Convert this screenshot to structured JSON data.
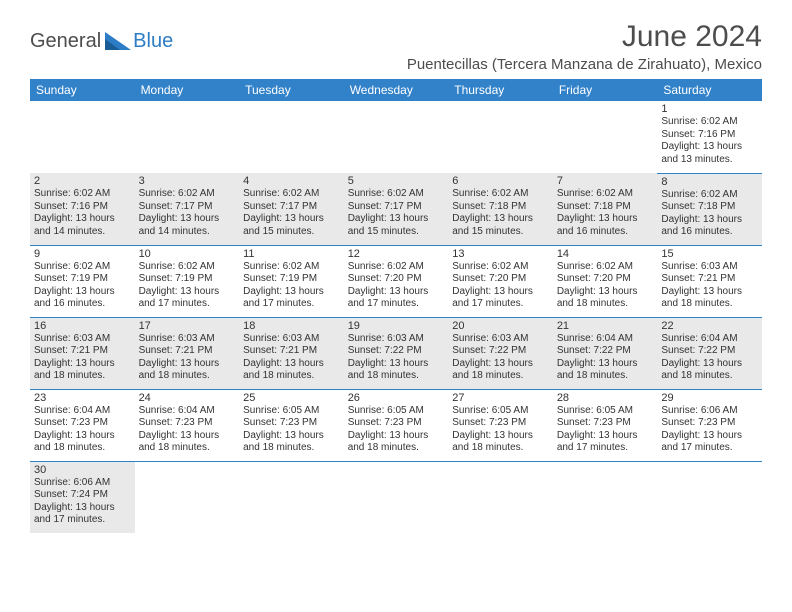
{
  "branding": {
    "logo_part1": "General",
    "logo_part2": "Blue",
    "logo_color_dark": "#4d4d4d",
    "logo_color_blue": "#2d7dc6"
  },
  "header": {
    "month_title": "June 2024",
    "location": "Puentecillas (Tercera Manzana de Zirahuato), Mexico"
  },
  "calendar": {
    "type": "table",
    "header_bg": "#3282c9",
    "header_text_color": "#ffffff",
    "row_separator_color": "#3282c9",
    "shaded_bg": "#e9e9e9",
    "day_headers": [
      "Sunday",
      "Monday",
      "Tuesday",
      "Wednesday",
      "Thursday",
      "Friday",
      "Saturday"
    ],
    "weeks": [
      [
        {
          "day": "",
          "sunrise": "",
          "sunset": "",
          "daylight": "",
          "shaded": false,
          "empty": true
        },
        {
          "day": "",
          "sunrise": "",
          "sunset": "",
          "daylight": "",
          "shaded": false,
          "empty": true
        },
        {
          "day": "",
          "sunrise": "",
          "sunset": "",
          "daylight": "",
          "shaded": false,
          "empty": true
        },
        {
          "day": "",
          "sunrise": "",
          "sunset": "",
          "daylight": "",
          "shaded": false,
          "empty": true
        },
        {
          "day": "",
          "sunrise": "",
          "sunset": "",
          "daylight": "",
          "shaded": false,
          "empty": true
        },
        {
          "day": "",
          "sunrise": "",
          "sunset": "",
          "daylight": "",
          "shaded": false,
          "empty": true
        },
        {
          "day": "1",
          "sunrise": "Sunrise: 6:02 AM",
          "sunset": "Sunset: 7:16 PM",
          "daylight": "Daylight: 13 hours and 13 minutes.",
          "shaded": false
        }
      ],
      [
        {
          "day": "2",
          "sunrise": "Sunrise: 6:02 AM",
          "sunset": "Sunset: 7:16 PM",
          "daylight": "Daylight: 13 hours and 14 minutes.",
          "shaded": true
        },
        {
          "day": "3",
          "sunrise": "Sunrise: 6:02 AM",
          "sunset": "Sunset: 7:17 PM",
          "daylight": "Daylight: 13 hours and 14 minutes.",
          "shaded": true
        },
        {
          "day": "4",
          "sunrise": "Sunrise: 6:02 AM",
          "sunset": "Sunset: 7:17 PM",
          "daylight": "Daylight: 13 hours and 15 minutes.",
          "shaded": true
        },
        {
          "day": "5",
          "sunrise": "Sunrise: 6:02 AM",
          "sunset": "Sunset: 7:17 PM",
          "daylight": "Daylight: 13 hours and 15 minutes.",
          "shaded": true
        },
        {
          "day": "6",
          "sunrise": "Sunrise: 6:02 AM",
          "sunset": "Sunset: 7:18 PM",
          "daylight": "Daylight: 13 hours and 15 minutes.",
          "shaded": true
        },
        {
          "day": "7",
          "sunrise": "Sunrise: 6:02 AM",
          "sunset": "Sunset: 7:18 PM",
          "daylight": "Daylight: 13 hours and 16 minutes.",
          "shaded": true
        },
        {
          "day": "8",
          "sunrise": "Sunrise: 6:02 AM",
          "sunset": "Sunset: 7:18 PM",
          "daylight": "Daylight: 13 hours and 16 minutes.",
          "shaded": true
        }
      ],
      [
        {
          "day": "9",
          "sunrise": "Sunrise: 6:02 AM",
          "sunset": "Sunset: 7:19 PM",
          "daylight": "Daylight: 13 hours and 16 minutes.",
          "shaded": false
        },
        {
          "day": "10",
          "sunrise": "Sunrise: 6:02 AM",
          "sunset": "Sunset: 7:19 PM",
          "daylight": "Daylight: 13 hours and 17 minutes.",
          "shaded": false
        },
        {
          "day": "11",
          "sunrise": "Sunrise: 6:02 AM",
          "sunset": "Sunset: 7:19 PM",
          "daylight": "Daylight: 13 hours and 17 minutes.",
          "shaded": false
        },
        {
          "day": "12",
          "sunrise": "Sunrise: 6:02 AM",
          "sunset": "Sunset: 7:20 PM",
          "daylight": "Daylight: 13 hours and 17 minutes.",
          "shaded": false
        },
        {
          "day": "13",
          "sunrise": "Sunrise: 6:02 AM",
          "sunset": "Sunset: 7:20 PM",
          "daylight": "Daylight: 13 hours and 17 minutes.",
          "shaded": false
        },
        {
          "day": "14",
          "sunrise": "Sunrise: 6:02 AM",
          "sunset": "Sunset: 7:20 PM",
          "daylight": "Daylight: 13 hours and 18 minutes.",
          "shaded": false
        },
        {
          "day": "15",
          "sunrise": "Sunrise: 6:03 AM",
          "sunset": "Sunset: 7:21 PM",
          "daylight": "Daylight: 13 hours and 18 minutes.",
          "shaded": false
        }
      ],
      [
        {
          "day": "16",
          "sunrise": "Sunrise: 6:03 AM",
          "sunset": "Sunset: 7:21 PM",
          "daylight": "Daylight: 13 hours and 18 minutes.",
          "shaded": true
        },
        {
          "day": "17",
          "sunrise": "Sunrise: 6:03 AM",
          "sunset": "Sunset: 7:21 PM",
          "daylight": "Daylight: 13 hours and 18 minutes.",
          "shaded": true
        },
        {
          "day": "18",
          "sunrise": "Sunrise: 6:03 AM",
          "sunset": "Sunset: 7:21 PM",
          "daylight": "Daylight: 13 hours and 18 minutes.",
          "shaded": true
        },
        {
          "day": "19",
          "sunrise": "Sunrise: 6:03 AM",
          "sunset": "Sunset: 7:22 PM",
          "daylight": "Daylight: 13 hours and 18 minutes.",
          "shaded": true
        },
        {
          "day": "20",
          "sunrise": "Sunrise: 6:03 AM",
          "sunset": "Sunset: 7:22 PM",
          "daylight": "Daylight: 13 hours and 18 minutes.",
          "shaded": true
        },
        {
          "day": "21",
          "sunrise": "Sunrise: 6:04 AM",
          "sunset": "Sunset: 7:22 PM",
          "daylight": "Daylight: 13 hours and 18 minutes.",
          "shaded": true
        },
        {
          "day": "22",
          "sunrise": "Sunrise: 6:04 AM",
          "sunset": "Sunset: 7:22 PM",
          "daylight": "Daylight: 13 hours and 18 minutes.",
          "shaded": true
        }
      ],
      [
        {
          "day": "23",
          "sunrise": "Sunrise: 6:04 AM",
          "sunset": "Sunset: 7:23 PM",
          "daylight": "Daylight: 13 hours and 18 minutes.",
          "shaded": false
        },
        {
          "day": "24",
          "sunrise": "Sunrise: 6:04 AM",
          "sunset": "Sunset: 7:23 PM",
          "daylight": "Daylight: 13 hours and 18 minutes.",
          "shaded": false
        },
        {
          "day": "25",
          "sunrise": "Sunrise: 6:05 AM",
          "sunset": "Sunset: 7:23 PM",
          "daylight": "Daylight: 13 hours and 18 minutes.",
          "shaded": false
        },
        {
          "day": "26",
          "sunrise": "Sunrise: 6:05 AM",
          "sunset": "Sunset: 7:23 PM",
          "daylight": "Daylight: 13 hours and 18 minutes.",
          "shaded": false
        },
        {
          "day": "27",
          "sunrise": "Sunrise: 6:05 AM",
          "sunset": "Sunset: 7:23 PM",
          "daylight": "Daylight: 13 hours and 18 minutes.",
          "shaded": false
        },
        {
          "day": "28",
          "sunrise": "Sunrise: 6:05 AM",
          "sunset": "Sunset: 7:23 PM",
          "daylight": "Daylight: 13 hours and 17 minutes.",
          "shaded": false
        },
        {
          "day": "29",
          "sunrise": "Sunrise: 6:06 AM",
          "sunset": "Sunset: 7:23 PM",
          "daylight": "Daylight: 13 hours and 17 minutes.",
          "shaded": false
        }
      ],
      [
        {
          "day": "30",
          "sunrise": "Sunrise: 6:06 AM",
          "sunset": "Sunset: 7:24 PM",
          "daylight": "Daylight: 13 hours and 17 minutes.",
          "shaded": true
        },
        {
          "day": "",
          "sunrise": "",
          "sunset": "",
          "daylight": "",
          "shaded": false,
          "empty": true
        },
        {
          "day": "",
          "sunrise": "",
          "sunset": "",
          "daylight": "",
          "shaded": false,
          "empty": true
        },
        {
          "day": "",
          "sunrise": "",
          "sunset": "",
          "daylight": "",
          "shaded": false,
          "empty": true
        },
        {
          "day": "",
          "sunrise": "",
          "sunset": "",
          "daylight": "",
          "shaded": false,
          "empty": true
        },
        {
          "day": "",
          "sunrise": "",
          "sunset": "",
          "daylight": "",
          "shaded": false,
          "empty": true
        },
        {
          "day": "",
          "sunrise": "",
          "sunset": "",
          "daylight": "",
          "shaded": false,
          "empty": true
        }
      ]
    ]
  }
}
